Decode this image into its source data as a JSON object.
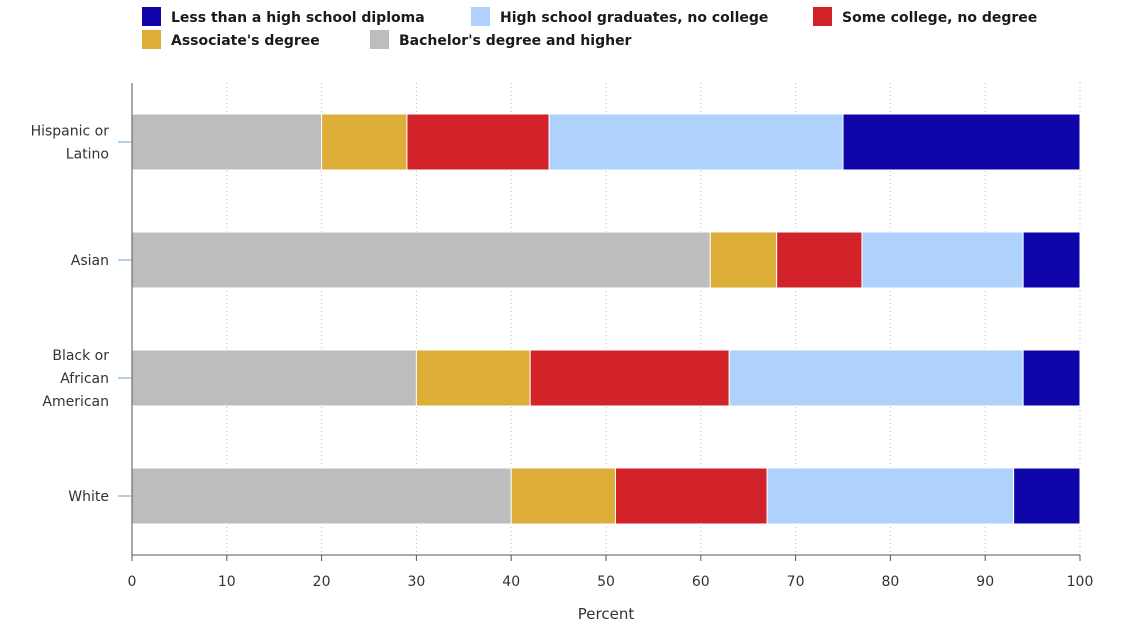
{
  "chart_data": {
    "type": "bar",
    "orientation": "horizontal",
    "stacked": true,
    "categories": [
      [
        "Hispanic or",
        "Latino"
      ],
      [
        "Asian"
      ],
      [
        "Black or",
        "African",
        "American"
      ],
      [
        "White"
      ]
    ],
    "series": [
      {
        "name": "Bachelor's degree and higher",
        "color": "#bdbdbd",
        "values": [
          20,
          61,
          30,
          40
        ]
      },
      {
        "name": "Associate's degree",
        "color": "#dcae37",
        "values": [
          9,
          7,
          12,
          11
        ]
      },
      {
        "name": "Some college, no degree",
        "color": "#d2232a",
        "values": [
          15,
          9,
          21,
          16
        ]
      },
      {
        "name": "High school graduates, no college",
        "color": "#afd2fd",
        "values": [
          31,
          17,
          31,
          26
        ]
      },
      {
        "name": "Less than a high school diploma",
        "color": "#1005a8",
        "values": [
          25,
          6,
          6,
          7
        ]
      }
    ],
    "legend_order": [
      "Less than a high school diploma",
      "High school graduates, no college",
      "Some college, no degree",
      "Associate's degree",
      "Bachelor's degree and higher"
    ],
    "legend_position": "top",
    "xlabel": "Percent",
    "ylabel": "",
    "xlim": [
      0,
      100
    ],
    "xticks": [
      0,
      10,
      20,
      30,
      40,
      50,
      60,
      70,
      80,
      90,
      100
    ],
    "grid": "vertical dotted"
  }
}
